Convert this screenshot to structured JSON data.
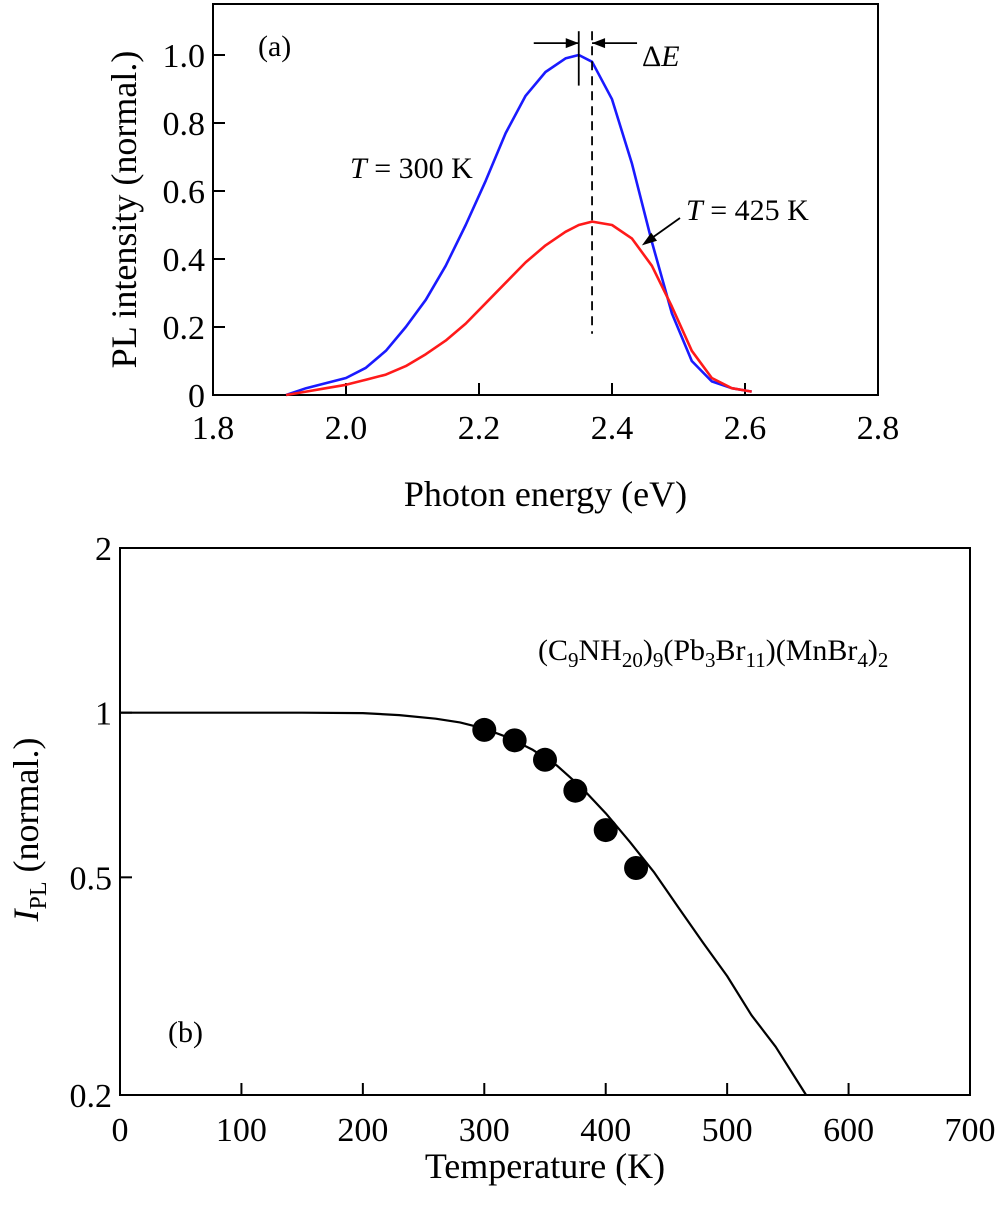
{
  "chart_data": [
    {
      "type": "line",
      "panel_label": "(a)",
      "xlabel": "Photon energy (eV)",
      "ylabel": "PL intensity (normal.)",
      "xlim": [
        1.8,
        2.8
      ],
      "ylim": [
        0,
        1.15
      ],
      "x_ticks": [
        1.8,
        2.0,
        2.2,
        2.4,
        2.6,
        2.8
      ],
      "x_tick_labels": [
        "1.8",
        "2.0",
        "2.2",
        "2.4",
        "2.6",
        "2.8"
      ],
      "y_ticks": [
        0,
        0.2,
        0.4,
        0.6,
        0.8,
        1.0
      ],
      "y_tick_labels": [
        "0",
        "0.2",
        "0.4",
        "0.6",
        "0.8",
        "1.0"
      ],
      "series": [
        {
          "color": "#1a1aff",
          "x": [
            1.91,
            1.94,
            1.97,
            2.0,
            2.03,
            2.06,
            2.09,
            2.12,
            2.15,
            2.18,
            2.21,
            2.24,
            2.27,
            2.3,
            2.33,
            2.35,
            2.37,
            2.4,
            2.43,
            2.46,
            2.49,
            2.52,
            2.55,
            2.58,
            2.61
          ],
          "y": [
            0.0,
            0.02,
            0.035,
            0.05,
            0.08,
            0.13,
            0.2,
            0.28,
            0.38,
            0.5,
            0.63,
            0.77,
            0.88,
            0.95,
            0.99,
            1.0,
            0.98,
            0.87,
            0.68,
            0.45,
            0.24,
            0.1,
            0.04,
            0.02,
            0.01
          ]
        },
        {
          "color": "#ff1a1a",
          "x": [
            1.91,
            1.94,
            1.97,
            2.0,
            2.03,
            2.06,
            2.09,
            2.12,
            2.15,
            2.18,
            2.21,
            2.24,
            2.27,
            2.3,
            2.33,
            2.35,
            2.37,
            2.4,
            2.43,
            2.46,
            2.49,
            2.52,
            2.55,
            2.58,
            2.61
          ],
          "y": [
            0.0,
            0.01,
            0.02,
            0.03,
            0.045,
            0.06,
            0.085,
            0.12,
            0.16,
            0.21,
            0.27,
            0.33,
            0.39,
            0.44,
            0.48,
            0.5,
            0.51,
            0.5,
            0.46,
            0.38,
            0.26,
            0.13,
            0.05,
            0.02,
            0.01
          ]
        }
      ],
      "annotations": {
        "t300_prefix": "T",
        "t300_suffix": " = 300 K",
        "t425_prefix": "T",
        "t425_suffix": " = 425 K",
        "delta_e_delta": "Δ",
        "delta_e_italic": "E"
      },
      "marker_lines": {
        "peak_300_ev": 2.35,
        "peak_425_ev": 2.37
      }
    },
    {
      "type": "scatter",
      "panel_label": "(b)",
      "xlabel": "Temperature (K)",
      "ylabel_main": "I",
      "ylabel_sub": "PL",
      "ylabel_rest": " (normal.)",
      "xlim": [
        0,
        700
      ],
      "ylim": [
        0.2,
        2
      ],
      "y_scale": "log",
      "x_ticks": [
        0,
        100,
        200,
        300,
        400,
        500,
        600,
        700
      ],
      "x_tick_labels": [
        "0",
        "100",
        "200",
        "300",
        "400",
        "500",
        "600",
        "700"
      ],
      "y_ticks": [
        0.2,
        0.5,
        1,
        2
      ],
      "y_tick_labels": [
        "0.2",
        "0.5",
        "1",
        "2"
      ],
      "points": {
        "x": [
          300,
          325,
          350,
          375,
          400,
          425
        ],
        "y": [
          0.93,
          0.89,
          0.82,
          0.72,
          0.61,
          0.52
        ]
      },
      "fit_curve": {
        "x": [
          0,
          50,
          100,
          150,
          200,
          230,
          260,
          280,
          300,
          320,
          340,
          360,
          380,
          400,
          420,
          440,
          460,
          480,
          500,
          520,
          540,
          565
        ],
        "y": [
          1.0,
          1.0,
          1.0,
          1.0,
          0.998,
          0.99,
          0.975,
          0.96,
          0.935,
          0.9,
          0.855,
          0.8,
          0.73,
          0.655,
          0.58,
          0.51,
          0.44,
          0.38,
          0.33,
          0.28,
          0.245,
          0.2
        ]
      },
      "compound": {
        "parts": [
          {
            "t": "(C",
            "s": "n"
          },
          {
            "t": "9",
            "s": "sub"
          },
          {
            "t": "NH",
            "s": "n"
          },
          {
            "t": "20",
            "s": "sub"
          },
          {
            "t": ")",
            "s": "n"
          },
          {
            "t": "9",
            "s": "sub"
          },
          {
            "t": "(Pb",
            "s": "n"
          },
          {
            "t": "3",
            "s": "sub"
          },
          {
            "t": "Br",
            "s": "n"
          },
          {
            "t": "11",
            "s": "sub"
          },
          {
            "t": ")(MnBr",
            "s": "n"
          },
          {
            "t": "4",
            "s": "sub"
          },
          {
            "t": ")",
            "s": "n"
          },
          {
            "t": "2",
            "s": "sub"
          }
        ]
      }
    }
  ]
}
